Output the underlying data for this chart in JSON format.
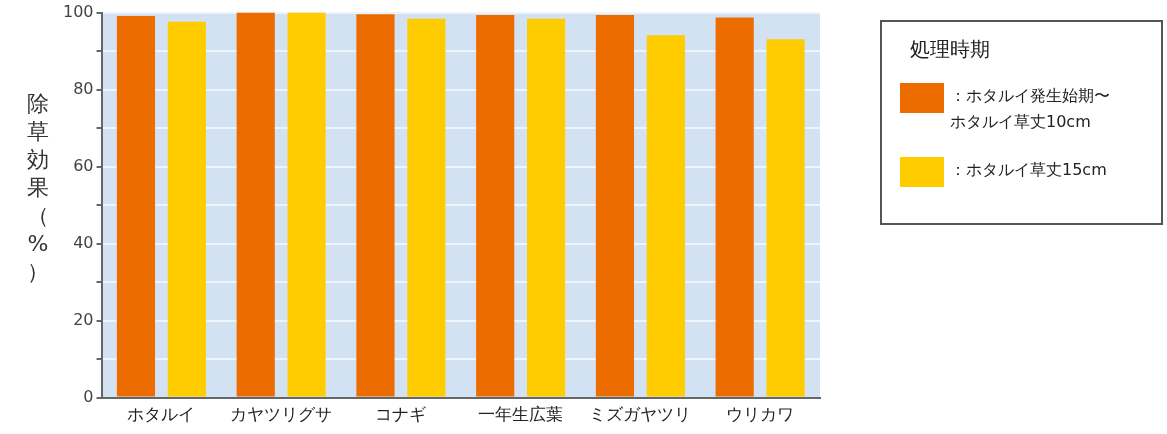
{
  "chart_data": {
    "type": "bar",
    "ylabel": "除草効果（%）",
    "legend_title": "処理時期",
    "categories": [
      "ホタルイ",
      "カヤツリグサ",
      "コナギ",
      "一年生広葉",
      "ミズガヤツリ",
      "ウリカワ"
    ],
    "series": [
      {
        "name": "：ホタルイ発生始期〜ホタルイ草丈10cm",
        "color": "#ec6c00",
        "values": [
          99.1,
          100,
          99.6,
          99.4,
          99.4,
          98.7
        ]
      },
      {
        "name": "：ホタルイ草丈15cm",
        "color": "#ffcc00",
        "values": [
          97.6,
          100,
          98.4,
          98.4,
          94.1,
          93.1
        ]
      }
    ],
    "ylim": [
      0,
      100
    ],
    "yticks": [
      0,
      {
        "value": 10,
        "label": null
      },
      20,
      {
        "value": 30,
        "label": null
      },
      40,
      {
        "value": 50,
        "label": null
      },
      60,
      {
        "value": 70,
        "label": null
      },
      80,
      {
        "value": 90,
        "label": null
      },
      100
    ],
    "grid": "y",
    "legend": "right"
  }
}
